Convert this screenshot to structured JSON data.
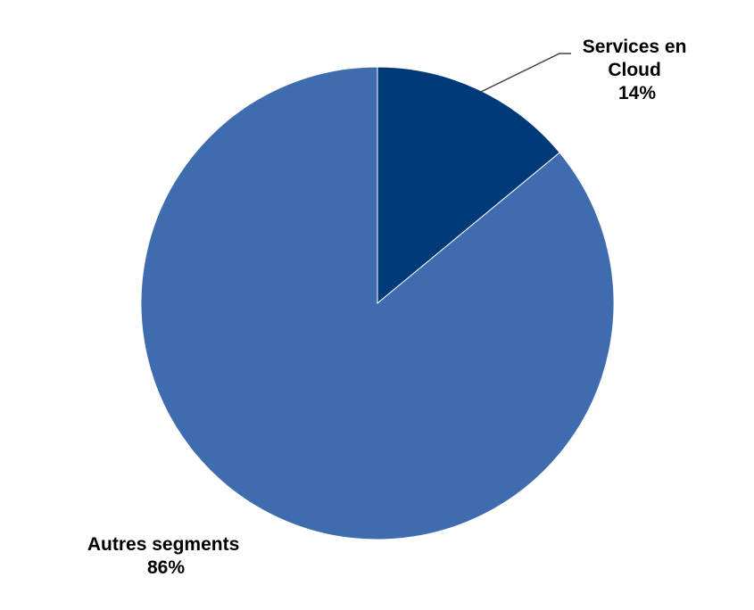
{
  "chart_data": {
    "type": "pie",
    "title": "",
    "start_angle_deg": 0,
    "direction": "clockwise",
    "slices": [
      {
        "label_lines": [
          "Services en",
          "Cloud"
        ],
        "percent_text": "14%",
        "value": 14,
        "color": "#003A78"
      },
      {
        "label_lines": [
          "Autres segments"
        ],
        "percent_text": "86%",
        "value": 86,
        "color": "#3F6CAE"
      }
    ],
    "legend": "none"
  }
}
